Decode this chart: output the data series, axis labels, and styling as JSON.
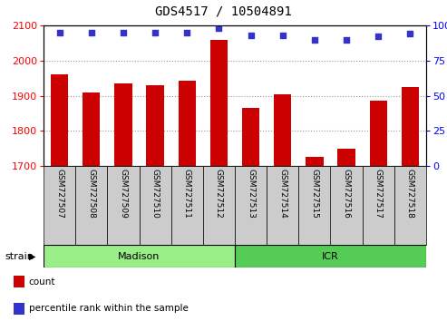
{
  "title": "GDS4517 / 10504891",
  "samples": [
    "GSM727507",
    "GSM727508",
    "GSM727509",
    "GSM727510",
    "GSM727511",
    "GSM727512",
    "GSM727513",
    "GSM727514",
    "GSM727515",
    "GSM727516",
    "GSM727517",
    "GSM727518"
  ],
  "counts": [
    1960,
    1910,
    1935,
    1930,
    1942,
    2060,
    1865,
    1905,
    1725,
    1748,
    1885,
    1925
  ],
  "percentiles": [
    95,
    95,
    95,
    95,
    95,
    98,
    93,
    93,
    90,
    90,
    92,
    94
  ],
  "ylim_left": [
    1700,
    2100
  ],
  "ylim_right": [
    0,
    100
  ],
  "yticks_left": [
    1700,
    1800,
    1900,
    2000,
    2100
  ],
  "yticks_right": [
    0,
    25,
    50,
    75,
    100
  ],
  "bar_color": "#cc0000",
  "dot_color": "#3333cc",
  "madison_color": "#99ee88",
  "icr_color": "#55cc55",
  "bg_color": "#ffffff",
  "grid_color": "#999999",
  "label_bg": "#cccccc",
  "legend_count_color": "#cc0000",
  "legend_pct_color": "#3333cc",
  "n_madison": 6,
  "n_icr": 6
}
